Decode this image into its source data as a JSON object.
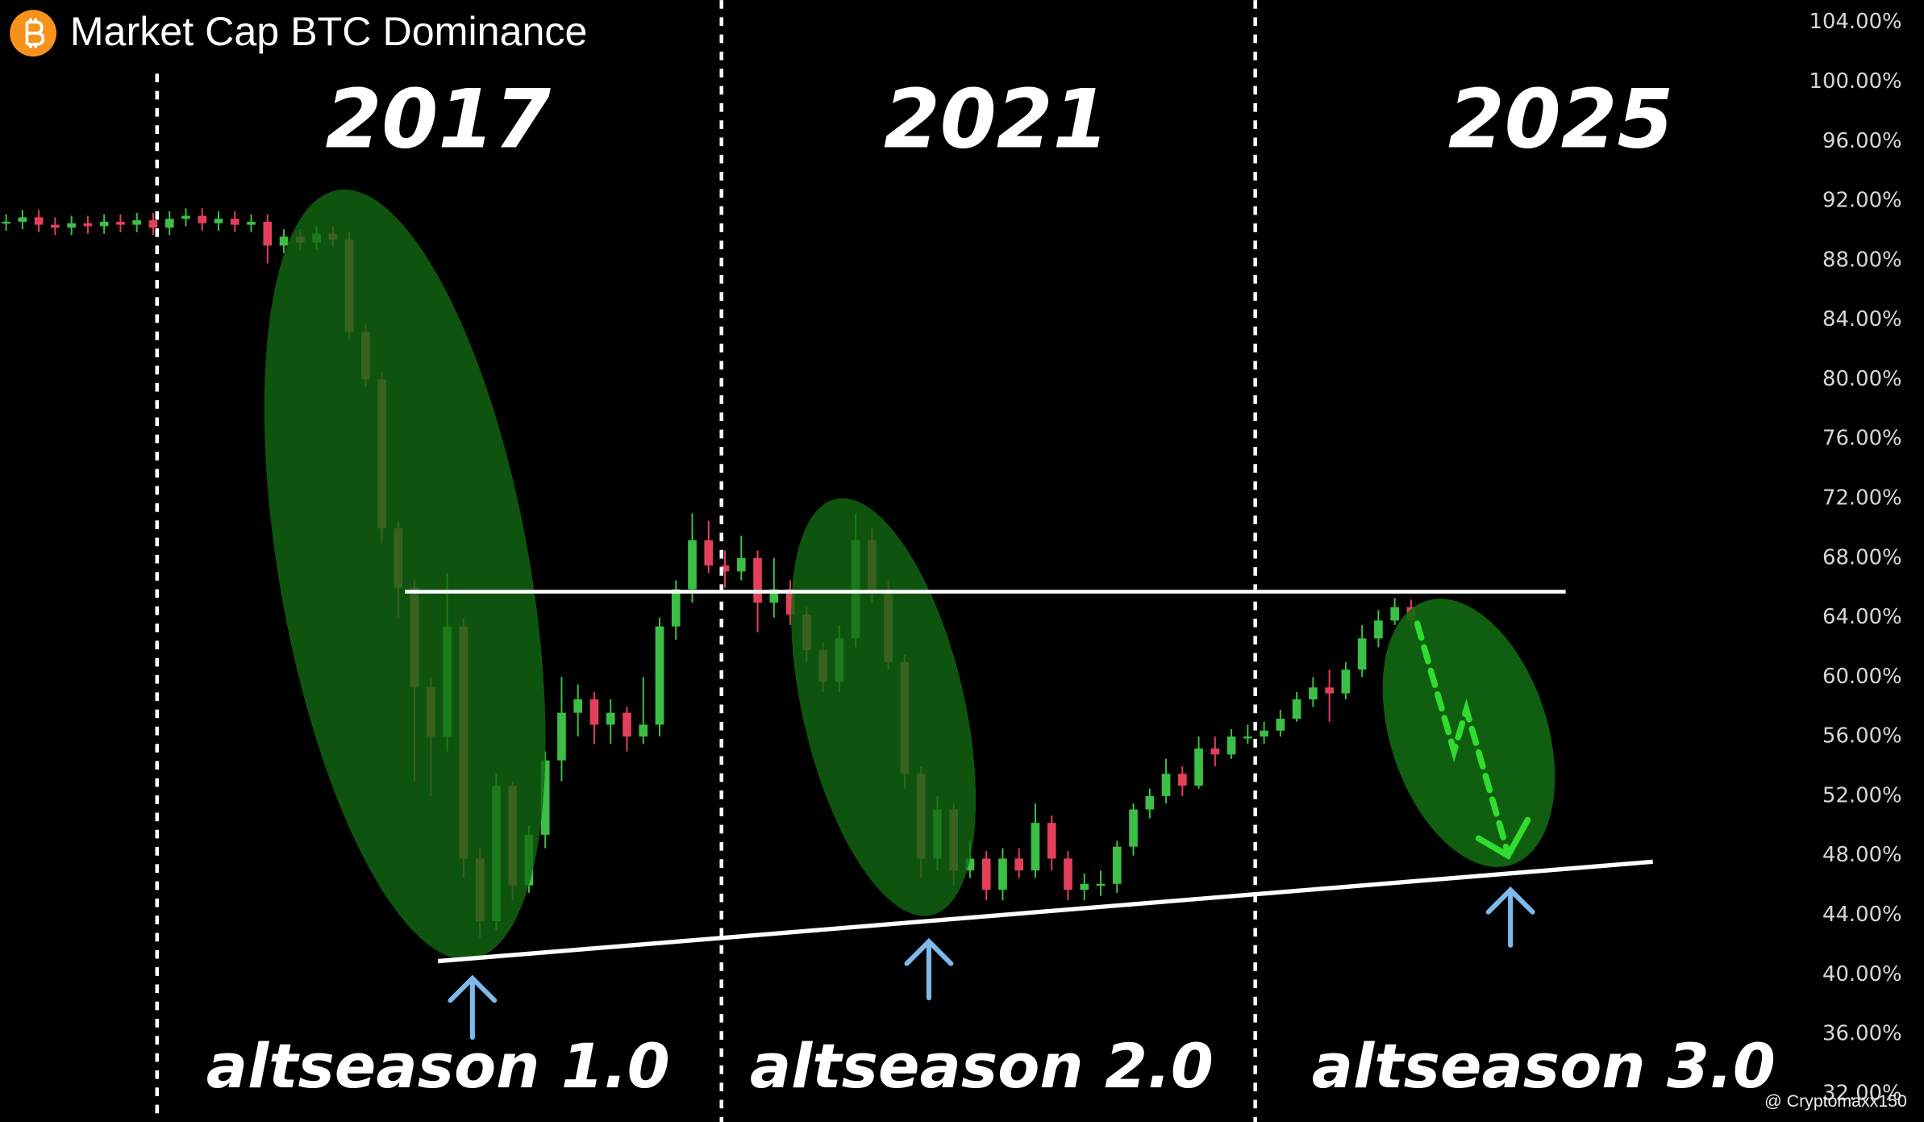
{
  "chart_data": {
    "type": "candlestick",
    "title": "Market Cap BTC Dominance",
    "annotations": {
      "years": [
        "2017",
        "2021",
        "2025"
      ],
      "labels": [
        "altseason 1.0",
        "altseason 2.0",
        "altseason 3.0"
      ],
      "watermark": "@ Cryptomaxx150"
    },
    "up_color": "#3cbf45",
    "down_color": "#e2405a",
    "highlight_year_color": "#f26a6a",
    "ylim": [
      30.1,
      105.5
    ],
    "yticks": [
      {
        "value": 104,
        "label": "104.00%"
      },
      {
        "value": 100,
        "label": "100.00%"
      },
      {
        "value": 96,
        "label": "96.00%"
      },
      {
        "value": 92,
        "label": "92.00%"
      },
      {
        "value": 88,
        "label": "88.00%"
      },
      {
        "value": 84,
        "label": "84.00%"
      },
      {
        "value": 80,
        "label": "80.00%"
      },
      {
        "value": 76,
        "label": "76.00%"
      },
      {
        "value": 72,
        "label": "72.00%"
      },
      {
        "value": 68,
        "label": "68.00%"
      },
      {
        "value": 64,
        "label": "64.00%"
      },
      {
        "value": 60,
        "label": "60.00%"
      },
      {
        "value": 56,
        "label": "56.00%"
      },
      {
        "value": 52,
        "label": "52.00%"
      },
      {
        "value": 48,
        "label": "48.00%"
      },
      {
        "value": 44,
        "label": "44.00%"
      },
      {
        "value": 40,
        "label": "40.00%"
      },
      {
        "value": 36,
        "label": "36.00%"
      },
      {
        "value": 32,
        "label": "32.00%"
      }
    ],
    "grid": false,
    "open": [
      90.5,
      90.6,
      90.9,
      90.4,
      90.2,
      90.5,
      90.3,
      90.6,
      90.4,
      90.7,
      90.2,
      90.8,
      91.0,
      90.5,
      90.8,
      90.4,
      90.6,
      89.0,
      89.6,
      89.2,
      89.8,
      89.4,
      83.2,
      80.0,
      70.0,
      66.0,
      59.3,
      56.0,
      63.4,
      47.8,
      43.6,
      52.7,
      46.0,
      49.4,
      54.4,
      57.6,
      58.5,
      56.8,
      57.6,
      56.0,
      56.8,
      63.4,
      65.9,
      69.2,
      67.5,
      67.1,
      68.0,
      65.0,
      65.9,
      64.2,
      61.8,
      59.7,
      62.6,
      69.2,
      65.9,
      61.0,
      53.5,
      47.8,
      51.1,
      47.0,
      47.8,
      45.7,
      47.8,
      47.0,
      50.2,
      47.8,
      45.7,
      46.1,
      46.1,
      48.6,
      51.1,
      52.0,
      53.5,
      52.7,
      55.2,
      54.8,
      56.0,
      56.0,
      56.4,
      57.2,
      58.5,
      59.3,
      58.9,
      60.5,
      62.6,
      63.8,
      64.7
    ],
    "close": [
      90.6,
      90.9,
      90.4,
      90.2,
      90.5,
      90.3,
      90.6,
      90.4,
      90.7,
      90.2,
      90.8,
      91.0,
      90.5,
      90.8,
      90.4,
      90.6,
      89.0,
      89.6,
      89.2,
      89.8,
      89.4,
      83.2,
      80.0,
      70.0,
      66.0,
      59.3,
      56.0,
      63.4,
      47.8,
      43.6,
      52.7,
      46.0,
      49.4,
      54.4,
      57.6,
      58.5,
      56.8,
      57.6,
      56.0,
      56.8,
      63.4,
      65.9,
      69.2,
      67.5,
      67.1,
      68.0,
      65.0,
      65.9,
      64.2,
      61.8,
      59.7,
      62.6,
      69.2,
      65.9,
      61.0,
      53.5,
      47.8,
      51.1,
      47.0,
      47.8,
      45.7,
      47.8,
      47.0,
      50.2,
      47.8,
      45.7,
      46.1,
      46.1,
      48.6,
      51.1,
      52.0,
      53.5,
      52.7,
      55.2,
      54.8,
      56.0,
      56.0,
      56.4,
      57.2,
      58.5,
      59.3,
      58.9,
      60.5,
      62.6,
      63.8,
      64.7,
      63.8
    ],
    "high": [
      91.1,
      91.4,
      91.4,
      90.9,
      91.0,
      91.0,
      91.1,
      91.1,
      91.2,
      91.2,
      91.3,
      91.5,
      91.5,
      91.3,
      91.3,
      91.1,
      91.1,
      90.1,
      90.1,
      90.3,
      90.3,
      89.9,
      83.7,
      80.5,
      70.5,
      66.5,
      60.0,
      67.0,
      64.0,
      48.5,
      53.5,
      53.0,
      50.0,
      55.0,
      60.0,
      59.5,
      59.0,
      58.5,
      58.0,
      60.0,
      64.0,
      66.5,
      71.0,
      70.5,
      68.5,
      69.5,
      68.5,
      68.0,
      66.5,
      64.7,
      62.3,
      63.5,
      71.0,
      70.0,
      66.5,
      61.5,
      54.0,
      52.0,
      51.5,
      49.0,
      48.3,
      48.5,
      48.5,
      51.5,
      50.7,
      48.3,
      46.8,
      47.0,
      49.0,
      51.5,
      52.5,
      54.5,
      54.0,
      56.0,
      56.0,
      56.5,
      56.8,
      57.0,
      57.8,
      59.0,
      60.0,
      60.5,
      61.0,
      63.5,
      64.5,
      65.3,
      65.2
    ],
    "low": [
      90.0,
      90.1,
      89.9,
      89.7,
      89.7,
      89.8,
      89.8,
      89.9,
      89.9,
      89.7,
      89.7,
      90.3,
      90.0,
      90.0,
      89.9,
      89.9,
      87.8,
      88.5,
      88.7,
      88.7,
      88.9,
      82.7,
      79.5,
      69.0,
      64.0,
      53.0,
      52.0,
      55.0,
      46.5,
      42.5,
      43.0,
      45.0,
      45.5,
      48.5,
      53.0,
      56.0,
      55.5,
      55.5,
      55.0,
      55.5,
      56.0,
      62.5,
      65.0,
      67.0,
      66.0,
      66.5,
      63.0,
      64.0,
      63.5,
      61.0,
      59.0,
      59.0,
      62.0,
      65.0,
      60.5,
      52.5,
      46.5,
      47.0,
      46.0,
      46.5,
      45.0,
      45.0,
      46.5,
      46.5,
      47.0,
      45.0,
      45.0,
      45.3,
      45.5,
      48.0,
      50.5,
      51.5,
      52.0,
      52.5,
      54.0,
      54.5,
      55.5,
      55.5,
      56.0,
      57.0,
      58.0,
      57.0,
      58.5,
      60.0,
      62.0,
      63.5,
      63.3
    ]
  }
}
